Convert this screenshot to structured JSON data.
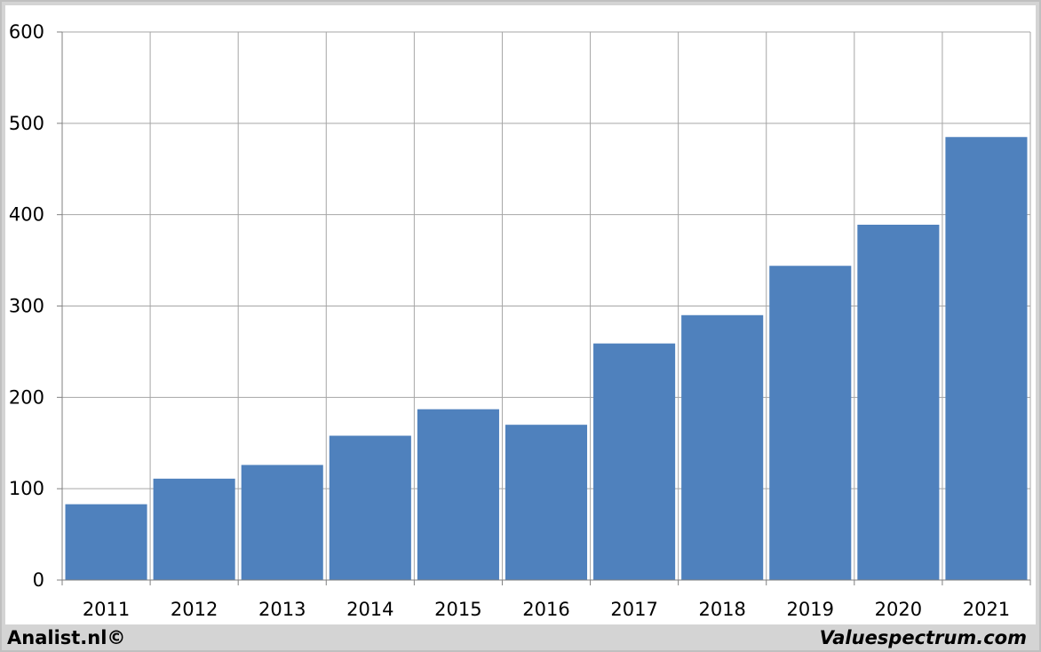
{
  "footer": {
    "left": "Analist.nl©",
    "right": "Valuespectrum.com"
  },
  "chart_data": {
    "type": "bar",
    "categories": [
      "2011",
      "2012",
      "2013",
      "2014",
      "2015",
      "2016",
      "2017",
      "2018",
      "2019",
      "2020",
      "2021"
    ],
    "values": [
      83,
      111,
      126,
      158,
      187,
      170,
      259,
      290,
      344,
      389,
      485
    ],
    "ylim": [
      0,
      600
    ],
    "yticks": [
      0,
      100,
      200,
      300,
      400,
      500,
      600
    ],
    "grid": true,
    "bar_color": "#4f81bd",
    "grid_color": "#a6a6a6"
  }
}
